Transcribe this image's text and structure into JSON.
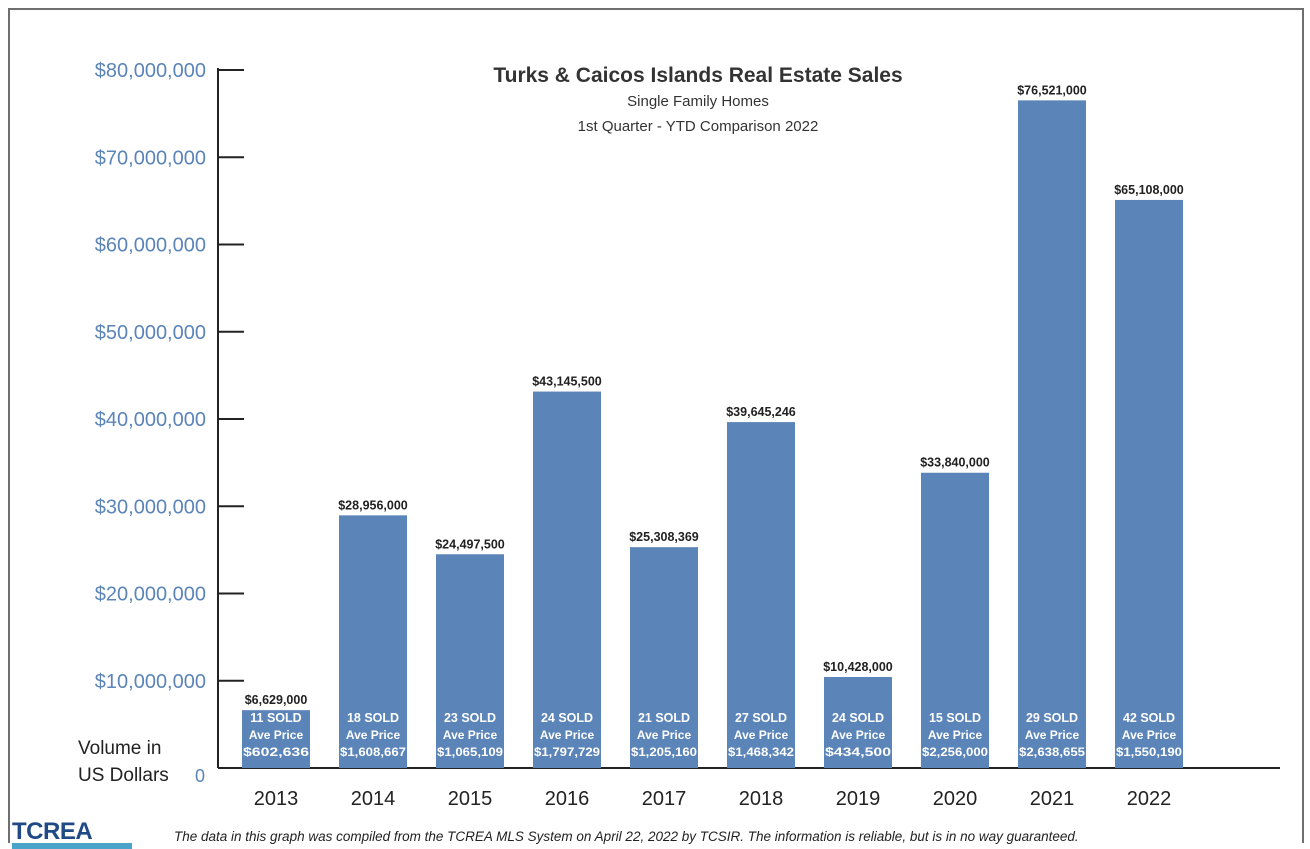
{
  "chart_data": {
    "type": "bar",
    "title": "Turks & Caicos Islands Real Estate Sales",
    "subtitle_lines": [
      "Single Family Homes",
      "1st Quarter - YTD Comparison 2022"
    ],
    "ylabel_lines": [
      "Volume in",
      "US Dollars"
    ],
    "ylim": [
      0,
      80000000
    ],
    "y_ticks": [
      {
        "value": 0,
        "label": "0"
      },
      {
        "value": 10000000,
        "label": "$10,000,000"
      },
      {
        "value": 20000000,
        "label": "$20,000,000"
      },
      {
        "value": 30000000,
        "label": "$30,000,000"
      },
      {
        "value": 40000000,
        "label": "$40,000,000"
      },
      {
        "value": 50000000,
        "label": "$50,000,000"
      },
      {
        "value": 60000000,
        "label": "$60,000,000"
      },
      {
        "value": 70000000,
        "label": "$70,000,000"
      },
      {
        "value": 80000000,
        "label": "$80,000,000"
      }
    ],
    "categories": [
      "2013",
      "2014",
      "2015",
      "2016",
      "2017",
      "2018",
      "2019",
      "2020",
      "2021",
      "2022"
    ],
    "values": [
      6629000,
      28956000,
      24497500,
      43145500,
      25308369,
      39645246,
      10428000,
      33840000,
      76521000,
      65108000
    ],
    "value_labels": [
      "$6,629,000",
      "$28,956,000",
      "$24,497,500",
      "$43,145,500",
      "$25,308,369",
      "$39,645,246",
      "$10,428,000",
      "$33,840,000",
      "$76,521,000",
      "$65,108,000"
    ],
    "sold_labels": [
      "11 SOLD",
      "18 SOLD",
      "23 SOLD",
      "24 SOLD",
      "21 SOLD",
      "27 SOLD",
      "24 SOLD",
      "15 SOLD",
      "29 SOLD",
      "42 SOLD"
    ],
    "avg_price_caption": "Ave Price",
    "avg_prices": [
      "$602,636",
      "$1,608,667",
      "$1,065,109",
      "$1,797,729",
      "$1,205,160",
      "$1,468,342",
      "$434,500",
      "$2,256,000",
      "$2,638,655",
      "$1,550,190"
    ],
    "grid": false,
    "legend": "none",
    "colors": {
      "bar": "#5b84b8",
      "axis_labels": "#5b84b8",
      "text": "#222222"
    }
  },
  "footer": {
    "logo_text": "TCREA",
    "note": "The data in this graph was compiled from the TCREA MLS System on April 22, 2022 by TCSIR.  The information is reliable, but is in no way guaranteed."
  }
}
